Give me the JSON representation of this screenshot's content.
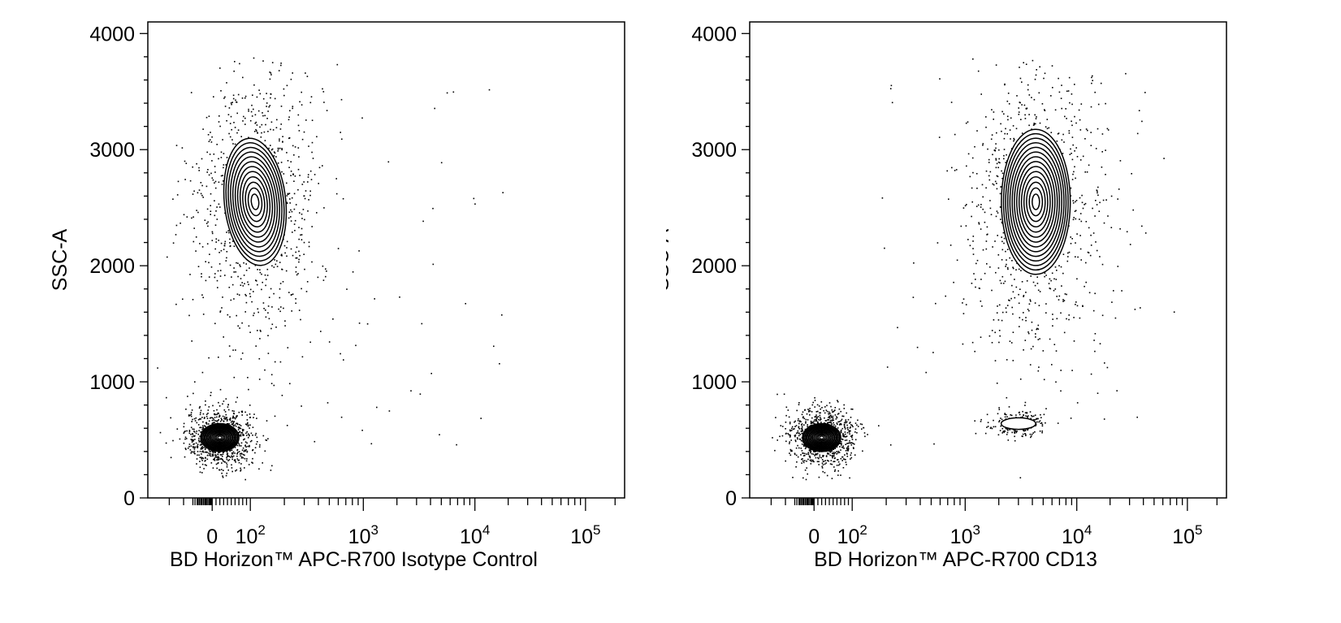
{
  "chart_data": [
    {
      "type": "scatter",
      "subtype": "flow-cytometry contour plot with outlier dots",
      "xlabel": "BD Horizon™ APC-R700 Isotype Control",
      "ylabel": "SSC-A",
      "x_scale": "biexponential (log with linear region around 0)",
      "xlim": [
        -200,
        250000
      ],
      "ylim": [
        0,
        4100
      ],
      "x_tick_labels": [
        {
          "value": 0,
          "base": "0",
          "exp": ""
        },
        {
          "value": 100,
          "base": "10",
          "exp": "2"
        },
        {
          "value": 1000,
          "base": "10",
          "exp": "3"
        },
        {
          "value": 10000,
          "base": "10",
          "exp": "4"
        },
        {
          "value": 100000,
          "base": "10",
          "exp": "5"
        }
      ],
      "y_ticks": [
        0,
        1000,
        2000,
        3000,
        4000
      ],
      "grid": false,
      "populations": [
        {
          "x_center": 20,
          "y_center": 520,
          "x_spread": 60,
          "y_spread": 240,
          "contour_levels": 14
        },
        {
          "x_center": 110,
          "y_center": 2550,
          "x_spread": 160,
          "y_spread": 1100,
          "contour_levels": 12
        }
      ]
    },
    {
      "type": "scatter",
      "subtype": "flow-cytometry contour plot with outlier dots",
      "xlabel": "BD Horizon™ APC-R700 CD13",
      "ylabel": "SSC-A",
      "x_scale": "biexponential (log with linear region around 0)",
      "xlim": [
        -200,
        250000
      ],
      "ylim": [
        0,
        4100
      ],
      "x_tick_labels": [
        {
          "value": 0,
          "base": "0",
          "exp": ""
        },
        {
          "value": 100,
          "base": "10",
          "exp": "2"
        },
        {
          "value": 1000,
          "base": "10",
          "exp": "3"
        },
        {
          "value": 10000,
          "base": "10",
          "exp": "4"
        },
        {
          "value": 100000,
          "base": "10",
          "exp": "5"
        }
      ],
      "y_ticks": [
        0,
        1000,
        2000,
        3000,
        4000
      ],
      "grid": false,
      "populations": [
        {
          "x_center": 20,
          "y_center": 520,
          "x_spread": 60,
          "y_spread": 240,
          "contour_levels": 14
        },
        {
          "x_center": 4300,
          "y_center": 2550,
          "x_spread": 8000,
          "y_spread": 1250,
          "contour_levels": 14
        },
        {
          "x_center": 3000,
          "y_center": 640,
          "x_spread": 1500,
          "y_spread": 100,
          "contour_levels": 1
        }
      ]
    }
  ]
}
